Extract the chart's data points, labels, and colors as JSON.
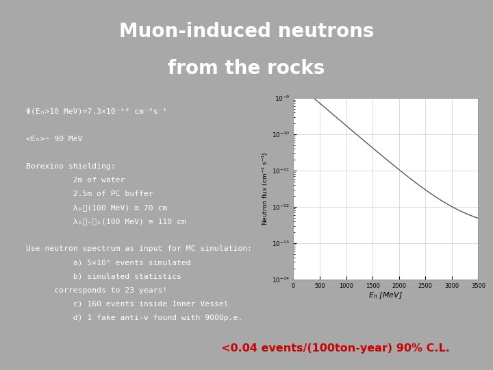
{
  "title_line1": "Muon-induced neutrons",
  "title_line2": "from the rocks",
  "title_bg_color": "#111111",
  "title_text_color": "#ffffff",
  "slide_bg_color": "#a8a8a8",
  "content_bg_color": "#111111",
  "content_text_color": "#ffffff",
  "highlight_bg_color": "#ffff00",
  "highlight_text_color": "#cc0000",
  "highlight_text": "<0.04 events/(100ton-year) 90% C.L.",
  "text_lines": [
    "Φ(Eₙ>10 MeV)=7.3×10⁻¹⁰ cm⁻²s⁻¹",
    "",
    "<Eₙ>~ 90 MeV",
    "",
    "Borexino shielding:",
    "          2m of water",
    "          2.5m of PC buffer",
    "          λₚᴄ(100 MeV) ≅ 70 cm",
    "          λₚᴄ-ᴇₛ(100 MeV) ≅ 110 cm",
    "",
    "Use neutron spectrum as input for MC simulation:",
    "          a) 5×10⁶ events simulated",
    "          b) simulated statistics",
    "      corresponds to 23 years!",
    "          c) 160 events inside Inner Vessel",
    "          d) 1 fake anti-ν found with 9000p.e."
  ],
  "plot_x_label": "$E_n$ [MeV]",
  "plot_y_label": "Neutron flux (cm$^{2}$ s$^{-1}$)",
  "plot_x_ticks": [
    0,
    500,
    1000,
    1500,
    2000,
    2500,
    3000,
    3500
  ],
  "plot_line_color": "#555555",
  "plot_bg_color": "#ffffff",
  "plot_frame_color": "#cccccc"
}
